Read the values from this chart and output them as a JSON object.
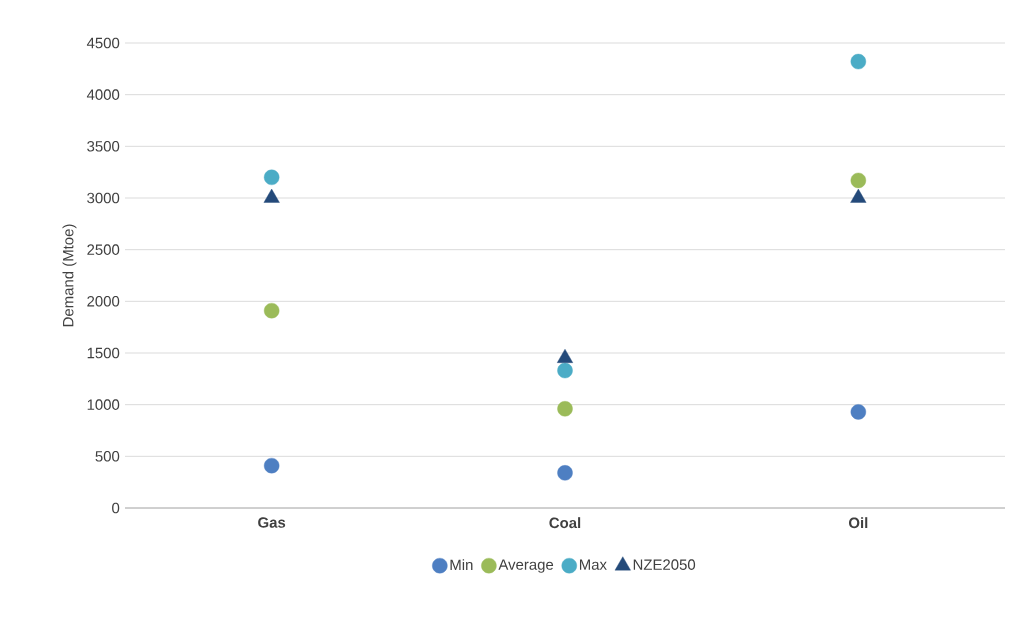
{
  "chart_data": {
    "type": "scatter",
    "ylabel": "Demand (Mtoe)",
    "categories": [
      "Gas",
      "Coal",
      "Oil"
    ],
    "series": [
      {
        "name": "Min",
        "color": "#4e7fc2",
        "marker": "circle",
        "values": [
          410,
          340,
          930
        ]
      },
      {
        "name": "Average",
        "color": "#9bbb59",
        "marker": "circle",
        "values": [
          1910,
          960,
          3170
        ]
      },
      {
        "name": "Max",
        "color": "#4bacc6",
        "marker": "circle",
        "values": [
          3200,
          1330,
          4320
        ]
      },
      {
        "name": "NZE2050",
        "color": "#244a7a",
        "marker": "triangle",
        "values": [
          3000,
          1450,
          3000
        ]
      }
    ],
    "ylim": [
      0,
      4500
    ],
    "yticks": [
      0,
      500,
      1000,
      1500,
      2000,
      2500,
      3000,
      3500,
      4000,
      4500
    ],
    "grid": "y",
    "legend": "bottom"
  }
}
